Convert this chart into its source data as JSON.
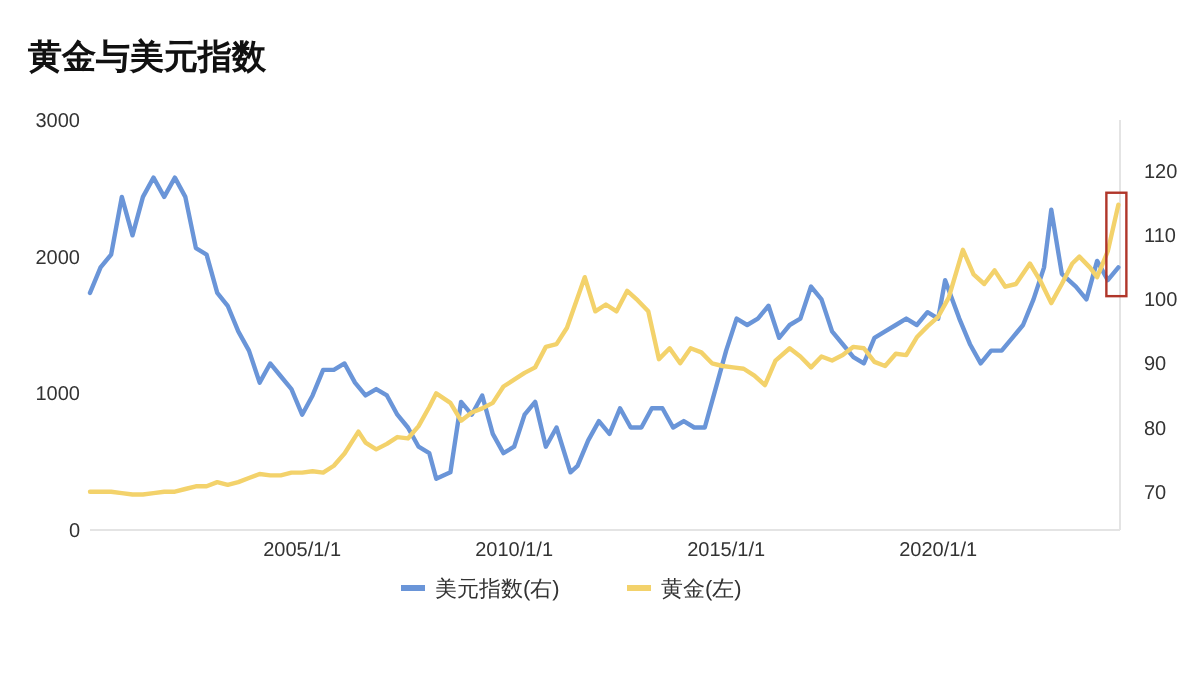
{
  "chart_data": {
    "type": "line",
    "title": "黄金与美元指数",
    "legend": "bottom",
    "grid": false,
    "marker": "none",
    "line_style": "solid",
    "xlim": [
      "2000-01-01",
      "2024-04-15"
    ],
    "xticks": [
      {
        "value": "2005-01-01",
        "label": "2005/1/1"
      },
      {
        "value": "2010-01-01",
        "label": "2010/1/1"
      },
      {
        "value": "2015-01-01",
        "label": "2015/1/1"
      },
      {
        "value": "2020-01-01",
        "label": "2020/1/1"
      }
    ],
    "ylim": [
      0,
      3000
    ],
    "yticks": [
      0,
      1000,
      2000,
      3000
    ],
    "y2lim": [
      64,
      128
    ],
    "y2ticks": [
      70,
      80,
      90,
      100,
      110,
      120
    ],
    "series": [
      {
        "name": "美元指数(右)",
        "color": "#6a95d8",
        "axis": "y2",
        "x": [
          "2000-01",
          "2000-04",
          "2000-07",
          "2000-10",
          "2001-01",
          "2001-04",
          "2001-07",
          "2001-10",
          "2002-01",
          "2002-04",
          "2002-07",
          "2002-10",
          "2003-01",
          "2003-04",
          "2003-07",
          "2003-10",
          "2004-01",
          "2004-04",
          "2004-07",
          "2004-10",
          "2005-01",
          "2005-04",
          "2005-07",
          "2005-10",
          "2006-01",
          "2006-04",
          "2006-07",
          "2006-10",
          "2007-01",
          "2007-04",
          "2007-07",
          "2007-10",
          "2008-01",
          "2008-03",
          "2008-07",
          "2008-10",
          "2009-01",
          "2009-04",
          "2009-07",
          "2009-10",
          "2010-01",
          "2010-04",
          "2010-07",
          "2010-10",
          "2011-01",
          "2011-05",
          "2011-07",
          "2011-10",
          "2012-01",
          "2012-04",
          "2012-07",
          "2012-10",
          "2013-01",
          "2013-04",
          "2013-07",
          "2013-10",
          "2014-01",
          "2014-04",
          "2014-07",
          "2014-10",
          "2015-01",
          "2015-04",
          "2015-07",
          "2015-10",
          "2016-01",
          "2016-04",
          "2016-07",
          "2016-10",
          "2017-01",
          "2017-04",
          "2017-07",
          "2017-10",
          "2018-01",
          "2018-04",
          "2018-07",
          "2018-10",
          "2019-01",
          "2019-04",
          "2019-07",
          "2019-10",
          "2020-01",
          "2020-03",
          "2020-07",
          "2020-10",
          "2021-01",
          "2021-04",
          "2021-07",
          "2021-10",
          "2022-01",
          "2022-04",
          "2022-07",
          "2022-09",
          "2022-12",
          "2023-04",
          "2023-07",
          "2023-10",
          "2024-01",
          "2024-04"
        ],
        "values": [
          101,
          105,
          107,
          116,
          110,
          116,
          119,
          116,
          119,
          116,
          108,
          107,
          101,
          99,
          95,
          92,
          87,
          90,
          88,
          86,
          82,
          85,
          89,
          89,
          90,
          87,
          85,
          86,
          85,
          82,
          80,
          77,
          76,
          72,
          73,
          84,
          82,
          85,
          79,
          76,
          77,
          82,
          84,
          77,
          80,
          73,
          74,
          78,
          81,
          79,
          83,
          80,
          80,
          83,
          83,
          80,
          81,
          80,
          80,
          86,
          92,
          97,
          96,
          97,
          99,
          94,
          96,
          97,
          102,
          100,
          95,
          93,
          91,
          90,
          94,
          95,
          96,
          97,
          96,
          98,
          97,
          103,
          97,
          93,
          90,
          92,
          92,
          94,
          96,
          100,
          105,
          114,
          104,
          102,
          100,
          106,
          103,
          105
        ]
      },
      {
        "name": "黄金(左)",
        "color": "#f3d26b",
        "x": [
          "2000-01",
          "2000-04",
          "2000-07",
          "2000-10",
          "2001-01",
          "2001-04",
          "2001-07",
          "2001-10",
          "2002-01",
          "2002-04",
          "2002-07",
          "2002-10",
          "2003-01",
          "2003-04",
          "2003-07",
          "2003-10",
          "2004-01",
          "2004-04",
          "2004-07",
          "2004-10",
          "2005-01",
          "2005-04",
          "2005-07",
          "2005-10",
          "2006-01",
          "2006-05",
          "2006-07",
          "2006-10",
          "2007-01",
          "2007-04",
          "2007-07",
          "2007-10",
          "2008-01",
          "2008-03",
          "2008-07",
          "2008-10",
          "2009-01",
          "2009-04",
          "2009-07",
          "2009-10",
          "2010-01",
          "2010-04",
          "2010-07",
          "2010-10",
          "2011-01",
          "2011-04",
          "2011-09",
          "2011-12",
          "2012-03",
          "2012-06",
          "2012-09",
          "2012-12",
          "2013-03",
          "2013-06",
          "2013-09",
          "2013-12",
          "2014-03",
          "2014-06",
          "2014-09",
          "2014-12",
          "2015-03",
          "2015-06",
          "2015-09",
          "2015-12",
          "2016-03",
          "2016-07",
          "2016-10",
          "2017-01",
          "2017-04",
          "2017-07",
          "2017-10",
          "2018-01",
          "2018-04",
          "2018-07",
          "2018-10",
          "2019-01",
          "2019-04",
          "2019-07",
          "2019-10",
          "2020-01",
          "2020-04",
          "2020-08",
          "2020-11",
          "2021-02",
          "2021-05",
          "2021-08",
          "2021-11",
          "2022-03",
          "2022-06",
          "2022-09",
          "2022-12",
          "2023-03",
          "2023-05",
          "2023-08",
          "2023-10",
          "2024-01",
          "2024-04"
        ],
        "values": [
          280,
          280,
          280,
          270,
          260,
          260,
          270,
          280,
          280,
          300,
          320,
          320,
          350,
          330,
          350,
          380,
          410,
          400,
          400,
          420,
          420,
          430,
          420,
          470,
          560,
          720,
          640,
          590,
          630,
          680,
          670,
          760,
          900,
          1000,
          930,
          800,
          860,
          890,
          930,
          1050,
          1100,
          1150,
          1190,
          1340,
          1360,
          1480,
          1850,
          1600,
          1650,
          1600,
          1750,
          1680,
          1600,
          1250,
          1330,
          1220,
          1330,
          1300,
          1220,
          1200,
          1190,
          1180,
          1130,
          1060,
          1240,
          1330,
          1270,
          1190,
          1270,
          1240,
          1280,
          1340,
          1330,
          1230,
          1200,
          1290,
          1280,
          1410,
          1490,
          1560,
          1700,
          2050,
          1870,
          1800,
          1900,
          1780,
          1800,
          1950,
          1820,
          1660,
          1800,
          1950,
          2000,
          1920,
          1850,
          2040,
          2380
        ]
      }
    ]
  }
}
